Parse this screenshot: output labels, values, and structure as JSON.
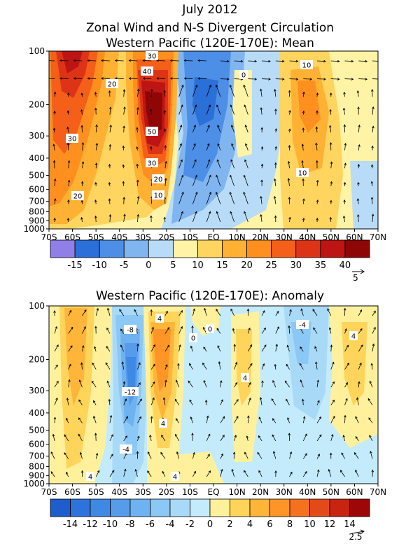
{
  "figure": {
    "title_lines": [
      "July 2012",
      "Zonal Wind and N-S Divergent Circulation",
      "Western Pacific (120E-170E): Mean"
    ]
  },
  "chart_data": [
    {
      "type": "heatmap",
      "title": "Western Pacific (120E-170E): Mean",
      "x_ticks": [
        "70S",
        "60S",
        "50S",
        "40S",
        "30S",
        "20S",
        "10S",
        "EQ",
        "10N",
        "20N",
        "30N",
        "40N",
        "50N",
        "60N",
        "70N"
      ],
      "y_ticks": [
        "100",
        "200",
        "300",
        "400",
        "500",
        "600",
        "700",
        "800",
        "900",
        "1000"
      ],
      "y_levels": [
        100,
        200,
        300,
        400,
        500,
        600,
        700,
        800,
        900,
        1000
      ],
      "xlim": [
        -70,
        70
      ],
      "ylim": [
        1000,
        100
      ],
      "y_scale": "log-pressure",
      "colorbar": {
        "labels": [
          "-15",
          "-10",
          "-5",
          "0",
          "5",
          "10",
          "15",
          "20",
          "25",
          "30",
          "35",
          "40"
        ],
        "bin_edges": [
          -20,
          -15,
          -10,
          -5,
          0,
          5,
          10,
          15,
          20,
          25,
          30,
          35,
          40,
          45
        ],
        "colors": [
          "#8f7fe6",
          "#2b6fd8",
          "#4d8ee6",
          "#80b5f0",
          "#b8dcf8",
          "#fff3a6",
          "#ffd45f",
          "#ffb133",
          "#ff8f1f",
          "#f45f1a",
          "#dd3418",
          "#bd1414",
          "#8f0606"
        ]
      },
      "contour_labels": [
        "30",
        "40",
        "20",
        "0",
        "10",
        "30",
        "50",
        "30",
        "20",
        "10",
        "20",
        "10"
      ],
      "vector_reference": "5"
    },
    {
      "type": "heatmap",
      "title": "Western Pacific (120E-170E): Anomaly",
      "x_ticks": [
        "70S",
        "60S",
        "50S",
        "40S",
        "30S",
        "20S",
        "10S",
        "EQ",
        "10N",
        "20N",
        "30N",
        "40N",
        "50N",
        "60N",
        "70N"
      ],
      "y_ticks": [
        "100",
        "200",
        "300",
        "400",
        "500",
        "600",
        "700",
        "800",
        "900",
        "1000"
      ],
      "y_levels": [
        100,
        200,
        300,
        400,
        500,
        600,
        700,
        800,
        900,
        1000
      ],
      "xlim": [
        -70,
        70
      ],
      "ylim": [
        1000,
        100
      ],
      "y_scale": "log-pressure",
      "colorbar": {
        "labels": [
          "-14",
          "-12",
          "-10",
          "-8",
          "-6",
          "-4",
          "-2",
          "0",
          "2",
          "4",
          "6",
          "8",
          "10",
          "12",
          "14"
        ],
        "bin_edges": [
          -16,
          -14,
          -12,
          -10,
          -8,
          -6,
          -4,
          -2,
          0,
          2,
          4,
          6,
          8,
          10,
          12,
          14,
          16
        ],
        "colors": [
          "#1f5ccc",
          "#2e73dc",
          "#3f88e4",
          "#569ceb",
          "#6fb2f1",
          "#8cc8f5",
          "#a8daf7",
          "#c4ebfb",
          "#fff19c",
          "#ffd45a",
          "#ffb53a",
          "#ff9526",
          "#f4721d",
          "#e24b18",
          "#c8240f",
          "#9e0707"
        ]
      },
      "contour_labels": [
        "-8",
        "4",
        "0",
        "-4",
        "4",
        "-12",
        "4",
        "4",
        "-4",
        "4",
        "4",
        "0"
      ],
      "vector_reference": "2.5"
    }
  ]
}
